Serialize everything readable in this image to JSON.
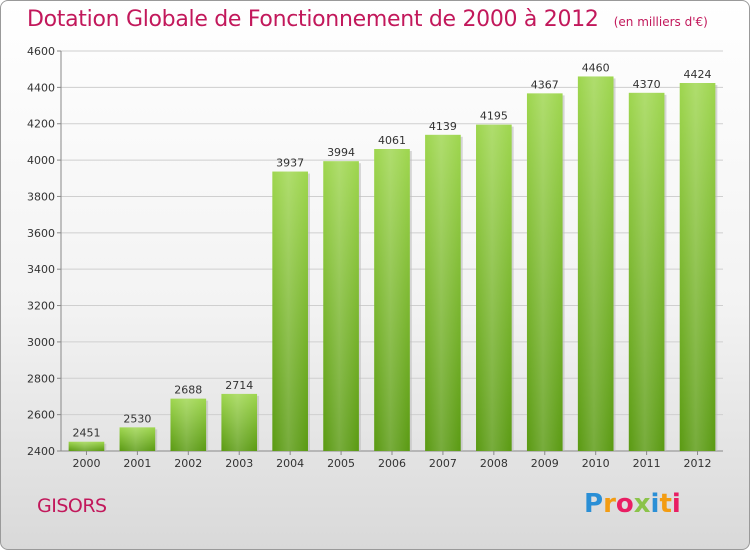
{
  "title": "Dotation Globale de Fonctionnement de 2000 à 2012",
  "unit_note": "(en milliers d'€)",
  "commune": "GISORS",
  "logo": {
    "text": "Proxiti",
    "letters": [
      {
        "ch": "P",
        "color": "#2a8fd6"
      },
      {
        "ch": "r",
        "color": "#f39c12"
      },
      {
        "ch": "o",
        "color": "#e91e63"
      },
      {
        "ch": "x",
        "color": "#8bc34a"
      },
      {
        "ch": "i",
        "color": "#2a8fd6"
      },
      {
        "ch": "t",
        "color": "#f39c12"
      },
      {
        "ch": "i",
        "color": "#e91e63"
      }
    ]
  },
  "colors": {
    "title": "#c2185b",
    "bar_top": "#9ed64e",
    "bar_bottom": "#5a9a12",
    "grid": "#cfcfcf"
  },
  "chart_data": {
    "type": "bar",
    "categories": [
      "2000",
      "2001",
      "2002",
      "2003",
      "2004",
      "2005",
      "2006",
      "2007",
      "2008",
      "2009",
      "2010",
      "2011",
      "2012"
    ],
    "values": [
      2451,
      2530,
      2688,
      2714,
      3937,
      3994,
      4061,
      4139,
      4195,
      4367,
      4460,
      4370,
      4424
    ],
    "yticks": [
      2400,
      2600,
      2800,
      3000,
      3200,
      3400,
      3600,
      3800,
      4000,
      4200,
      4400,
      4600
    ],
    "ylim": [
      2400,
      4600
    ],
    "grid": true,
    "xlabel": "",
    "ylabel": ""
  }
}
